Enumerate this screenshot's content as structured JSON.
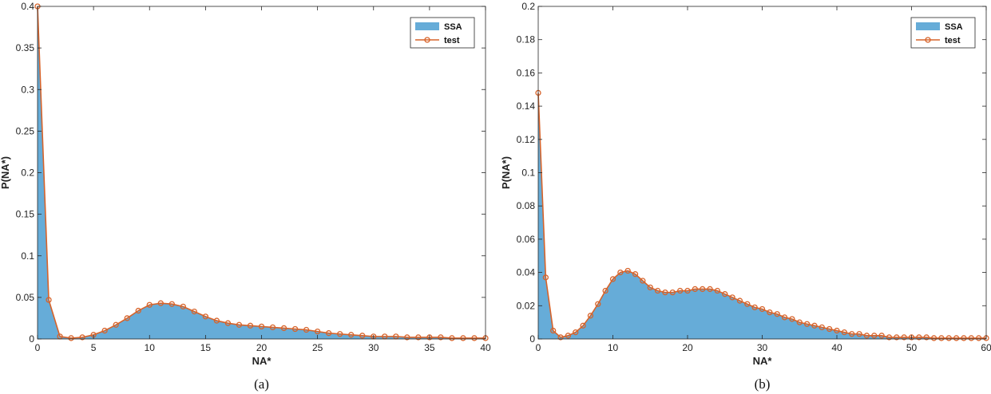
{
  "colors": {
    "area": "#66acd8",
    "line": "#d7632a",
    "axis": "#262626"
  },
  "chart_data": [
    {
      "type": "area",
      "caption": "(a)",
      "xlabel": "NA*",
      "ylabel": "P(NA*)",
      "xlim": [
        0,
        40
      ],
      "ylim": [
        0,
        0.4
      ],
      "xticks": [
        0,
        5,
        10,
        15,
        20,
        25,
        30,
        35,
        40
      ],
      "yticks": [
        0,
        0.05,
        0.1,
        0.15,
        0.2,
        0.25,
        0.3,
        0.35,
        0.4
      ],
      "ytick_labels": [
        "0",
        "0.05",
        "0.1",
        "0.15",
        "0.2",
        "0.25",
        "0.3",
        "0.35",
        "0.4"
      ],
      "legend": {
        "position": "top-right",
        "entries": [
          "SSA",
          "test"
        ]
      },
      "series": [
        {
          "name": "SSA",
          "kind": "area",
          "x": [
            0,
            1,
            2,
            3,
            4,
            5,
            6,
            7,
            8,
            9,
            10,
            11,
            12,
            13,
            14,
            15,
            16,
            17,
            18,
            19,
            20,
            21,
            22,
            23,
            24,
            25,
            26,
            27,
            28,
            29,
            30,
            31,
            32,
            33,
            34,
            35,
            36,
            37,
            38,
            39,
            40
          ],
          "y": [
            0.4,
            0.047,
            0.003,
            0.001,
            0.002,
            0.005,
            0.01,
            0.017,
            0.025,
            0.034,
            0.041,
            0.043,
            0.042,
            0.039,
            0.033,
            0.027,
            0.022,
            0.019,
            0.017,
            0.016,
            0.015,
            0.014,
            0.013,
            0.012,
            0.011,
            0.009,
            0.007,
            0.006,
            0.005,
            0.004,
            0.003,
            0.003,
            0.003,
            0.002,
            0.002,
            0.002,
            0.002,
            0.001,
            0.001,
            0.001,
            0.001
          ]
        },
        {
          "name": "test",
          "kind": "line",
          "x": [
            0,
            1,
            2,
            3,
            4,
            5,
            6,
            7,
            8,
            9,
            10,
            11,
            12,
            13,
            14,
            15,
            16,
            17,
            18,
            19,
            20,
            21,
            22,
            23,
            24,
            25,
            26,
            27,
            28,
            29,
            30,
            31,
            32,
            33,
            34,
            35,
            36,
            37,
            38,
            39,
            40
          ],
          "y": [
            0.4,
            0.047,
            0.003,
            0.001,
            0.002,
            0.005,
            0.01,
            0.017,
            0.025,
            0.034,
            0.041,
            0.043,
            0.042,
            0.039,
            0.033,
            0.027,
            0.022,
            0.019,
            0.017,
            0.016,
            0.015,
            0.014,
            0.013,
            0.012,
            0.011,
            0.009,
            0.007,
            0.006,
            0.005,
            0.004,
            0.003,
            0.003,
            0.003,
            0.002,
            0.002,
            0.002,
            0.002,
            0.001,
            0.001,
            0.001,
            0.001
          ]
        }
      ]
    },
    {
      "type": "area",
      "caption": "(b)",
      "xlabel": "NA*",
      "ylabel": "P(NA*)",
      "xlim": [
        0,
        60
      ],
      "ylim": [
        0,
        0.2
      ],
      "xticks": [
        0,
        10,
        20,
        30,
        40,
        50,
        60
      ],
      "yticks": [
        0,
        0.02,
        0.04,
        0.06,
        0.08,
        0.1,
        0.12,
        0.14,
        0.16,
        0.18,
        0.2
      ],
      "ytick_labels": [
        "0",
        "0.02",
        "0.04",
        "0.06",
        "0.08",
        "0.1",
        "0.12",
        "0.14",
        "0.16",
        "0.18",
        "0.2"
      ],
      "legend": {
        "position": "top-right",
        "entries": [
          "SSA",
          "test"
        ]
      },
      "series": [
        {
          "name": "SSA",
          "kind": "area",
          "x": [
            0,
            1,
            2,
            3,
            4,
            5,
            6,
            7,
            8,
            9,
            10,
            11,
            12,
            13,
            14,
            15,
            16,
            17,
            18,
            19,
            20,
            21,
            22,
            23,
            24,
            25,
            26,
            27,
            28,
            29,
            30,
            31,
            32,
            33,
            34,
            35,
            36,
            37,
            38,
            39,
            40,
            41,
            42,
            43,
            44,
            45,
            46,
            47,
            48,
            49,
            50,
            51,
            52,
            53,
            54,
            55,
            56,
            57,
            58,
            59,
            60
          ],
          "y": [
            0.148,
            0.037,
            0.005,
            0.001,
            0.002,
            0.004,
            0.008,
            0.014,
            0.021,
            0.029,
            0.036,
            0.04,
            0.041,
            0.039,
            0.035,
            0.031,
            0.029,
            0.028,
            0.028,
            0.029,
            0.029,
            0.03,
            0.03,
            0.03,
            0.029,
            0.027,
            0.025,
            0.023,
            0.021,
            0.019,
            0.018,
            0.016,
            0.015,
            0.013,
            0.012,
            0.01,
            0.009,
            0.008,
            0.007,
            0.006,
            0.005,
            0.004,
            0.003,
            0.003,
            0.002,
            0.002,
            0.002,
            0.001,
            0.001,
            0.001,
            0.001,
            0.001,
            0.001,
            0.0005,
            0.0005,
            0.0005,
            0.0005,
            0.0005,
            0.0005,
            0.0005,
            0.0005
          ]
        },
        {
          "name": "test",
          "kind": "line",
          "x": [
            0,
            1,
            2,
            3,
            4,
            5,
            6,
            7,
            8,
            9,
            10,
            11,
            12,
            13,
            14,
            15,
            16,
            17,
            18,
            19,
            20,
            21,
            22,
            23,
            24,
            25,
            26,
            27,
            28,
            29,
            30,
            31,
            32,
            33,
            34,
            35,
            36,
            37,
            38,
            39,
            40,
            41,
            42,
            43,
            44,
            45,
            46,
            47,
            48,
            49,
            50,
            51,
            52,
            53,
            54,
            55,
            56,
            57,
            58,
            59,
            60
          ],
          "y": [
            0.148,
            0.037,
            0.005,
            0.001,
            0.002,
            0.004,
            0.008,
            0.014,
            0.021,
            0.029,
            0.036,
            0.04,
            0.041,
            0.039,
            0.035,
            0.031,
            0.029,
            0.028,
            0.028,
            0.029,
            0.029,
            0.03,
            0.03,
            0.03,
            0.029,
            0.027,
            0.025,
            0.023,
            0.021,
            0.019,
            0.018,
            0.016,
            0.015,
            0.013,
            0.012,
            0.01,
            0.009,
            0.008,
            0.007,
            0.006,
            0.005,
            0.004,
            0.003,
            0.003,
            0.002,
            0.002,
            0.002,
            0.001,
            0.001,
            0.001,
            0.001,
            0.001,
            0.001,
            0.0005,
            0.0005,
            0.0005,
            0.0005,
            0.0005,
            0.0005,
            0.0005,
            0.0005
          ]
        }
      ]
    }
  ]
}
